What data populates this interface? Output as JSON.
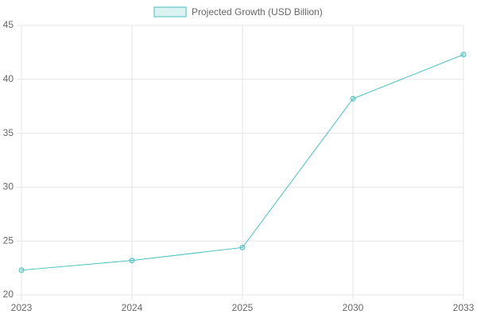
{
  "chart_data": {
    "type": "line",
    "categories": [
      "2023",
      "2024",
      "2025",
      "2030",
      "2033"
    ],
    "series": [
      {
        "name": "Projected Growth (USD Billion)",
        "color": "#4bc0c0",
        "values": [
          22.3,
          23.2,
          24.4,
          38.2,
          42.3
        ]
      }
    ],
    "ylim": [
      20,
      45
    ],
    "yticks": [
      20,
      25,
      30,
      35,
      40,
      45
    ],
    "grid": true
  }
}
